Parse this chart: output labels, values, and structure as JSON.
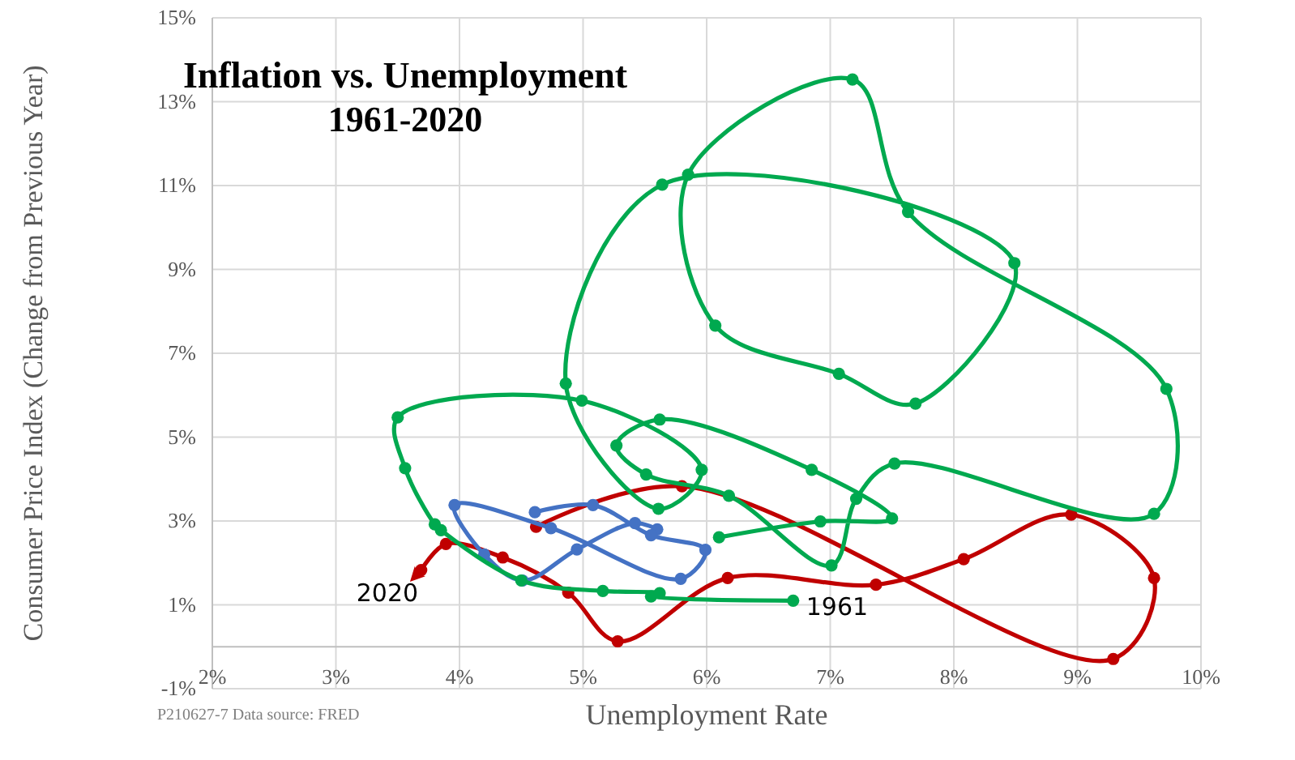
{
  "chart_data": {
    "type": "line",
    "title": "Inflation vs. Unemployment",
    "subtitle": "1961-2020",
    "xlabel": "Unemployment Rate",
    "ylabel": "Consumer Price Index (Change from Previous Year)",
    "xlim": [
      2,
      10
    ],
    "xticks": [
      {
        "value": 2,
        "label": "2%"
      },
      {
        "value": 3,
        "label": "3%"
      },
      {
        "value": 4,
        "label": "4%"
      },
      {
        "value": 5,
        "label": "5%"
      },
      {
        "value": 6,
        "label": "6%"
      },
      {
        "value": 7,
        "label": "7%"
      },
      {
        "value": 8,
        "label": "8%"
      },
      {
        "value": 9,
        "label": "9%"
      },
      {
        "value": 10,
        "label": "10%"
      }
    ],
    "ylim": [
      -1,
      15
    ],
    "yticks": [
      {
        "value": -1,
        "label": "-1%"
      },
      {
        "value": 1,
        "label": "1%"
      },
      {
        "value": 3,
        "label": "3%"
      },
      {
        "value": 5,
        "label": "5%"
      },
      {
        "value": 7,
        "label": "7%"
      },
      {
        "value": 9,
        "label": "9%"
      },
      {
        "value": 11,
        "label": "11%"
      },
      {
        "value": 13,
        "label": "13%"
      },
      {
        "value": 15,
        "label": "15%"
      }
    ],
    "grid": true,
    "marker": "circle",
    "line_style": "solid",
    "series": [
      {
        "color": "#00a94f",
        "x": [
          6.7,
          5.55,
          5.62,
          5.16,
          4.5,
          3.85,
          3.8,
          3.56,
          3.5,
          4.99,
          5.96,
          5.61,
          4.86,
          5.64,
          8.49,
          7.69,
          7.07,
          6.07,
          5.85,
          7.18,
          7.63,
          9.72,
          9.62,
          7.52,
          7.21,
          7.01,
          6.18,
          5.51,
          5.27,
          5.62,
          6.85,
          7.5,
          6.92,
          6.1
        ],
        "values": [
          1.1,
          1.2,
          1.28,
          1.33,
          1.58,
          2.78,
          2.92,
          4.26,
          5.47,
          5.87,
          4.22,
          3.29,
          6.28,
          11.02,
          9.15,
          5.8,
          6.51,
          7.66,
          11.26,
          13.53,
          10.37,
          6.15,
          3.17,
          4.37,
          3.53,
          1.94,
          3.6,
          4.11,
          4.8,
          5.42,
          4.22,
          3.06,
          2.99,
          2.61
        ]
      },
      {
        "color": "#4472c4",
        "x": [
          5.6,
          5.42,
          4.95,
          4.51,
          4.2,
          3.96,
          4.74,
          5.79,
          5.99,
          5.55,
          5.08,
          4.61
        ],
        "values": [
          2.8,
          2.95,
          2.32,
          1.58,
          2.2,
          3.38,
          2.83,
          1.62,
          2.31,
          2.66,
          3.38,
          3.21
        ]
      },
      {
        "color": "#c00000",
        "x": [
          4.62,
          5.8,
          9.29,
          9.62,
          8.95,
          8.08,
          7.37,
          6.17,
          5.28,
          4.88,
          4.35,
          3.89,
          3.69
        ],
        "values": [
          2.86,
          3.83,
          -0.29,
          1.64,
          3.15,
          2.09,
          1.48,
          1.64,
          0.13,
          1.29,
          2.13,
          2.45,
          1.83
        ]
      }
    ],
    "annotations": [
      {
        "text": "1961",
        "x": 6.7,
        "y": 1.1
      },
      {
        "text": "2020",
        "x": 3.69,
        "y": 1.83
      },
      "P210627-7 Data source: FRED"
    ]
  }
}
